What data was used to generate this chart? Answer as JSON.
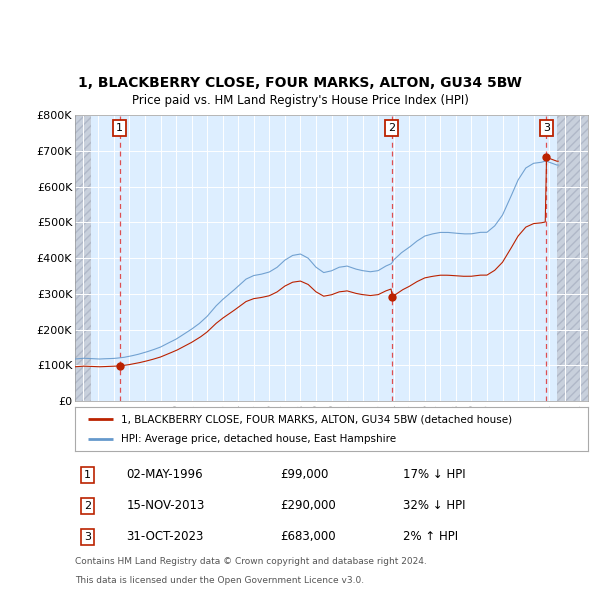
{
  "title": "1, BLACKBERRY CLOSE, FOUR MARKS, ALTON, GU34 5BW",
  "subtitle": "Price paid vs. HM Land Registry's House Price Index (HPI)",
  "legend_label_red": "1, BLACKBERRY CLOSE, FOUR MARKS, ALTON, GU34 5BW (detached house)",
  "legend_label_blue": "HPI: Average price, detached house, East Hampshire",
  "footer_line1": "Contains HM Land Registry data © Crown copyright and database right 2024.",
  "footer_line2": "This data is licensed under the Open Government Licence v3.0.",
  "sales": [
    {
      "num": 1,
      "date": "02-MAY-1996",
      "price": 99000,
      "rel": "17% ↓ HPI",
      "x_year": 1996.37
    },
    {
      "num": 2,
      "date": "15-NOV-2013",
      "price": 290000,
      "rel": "32% ↓ HPI",
      "x_year": 2013.87
    },
    {
      "num": 3,
      "date": "31-OCT-2023",
      "price": 683000,
      "rel": "2% ↑ HPI",
      "x_year": 2023.83
    }
  ],
  "ylim": [
    0,
    800000
  ],
  "xlim_start": 1993.5,
  "xlim_end": 2026.5,
  "yticks": [
    0,
    100000,
    200000,
    300000,
    400000,
    500000,
    600000,
    700000,
    800000
  ],
  "ytick_labels": [
    "£0",
    "£100K",
    "£200K",
    "£300K",
    "£400K",
    "£500K",
    "£600K",
    "£700K",
    "£800K"
  ],
  "xtick_years": [
    1994,
    1995,
    1996,
    1997,
    1998,
    1999,
    2000,
    2001,
    2002,
    2003,
    2004,
    2005,
    2006,
    2007,
    2008,
    2009,
    2010,
    2011,
    2012,
    2013,
    2014,
    2015,
    2016,
    2017,
    2018,
    2019,
    2020,
    2021,
    2022,
    2023,
    2024,
    2025,
    2026
  ],
  "background_color": "#ffffff",
  "plot_bg_color": "#ddeeff",
  "plot_bg_color2": "#e8eef8",
  "hatch_edgecolor": "#b0b8c8",
  "hatch_facecolor": "#c8d0dc",
  "grid_color": "#ffffff",
  "red_color": "#bb2200",
  "blue_color": "#6699cc",
  "dashed_line_color": "#dd3333",
  "sale_marker_color": "#bb2200",
  "hatch_left_end": 1994.5,
  "hatch_right_start": 2024.5
}
